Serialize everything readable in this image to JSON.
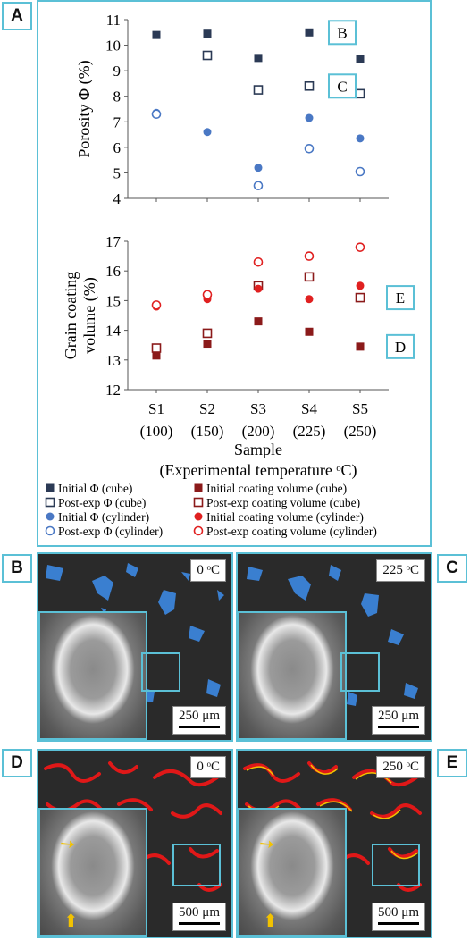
{
  "panel_labels": {
    "a": "A",
    "b": "B",
    "c": "C",
    "d": "D",
    "e": "E"
  },
  "colors": {
    "frame": "#5bc0d6",
    "porosity_cube": "#2b3a55",
    "porosity_cylinder": "#4a78c4",
    "coating_cube": "#8b1a1a",
    "coating_cylinder": "#e02020",
    "pore_blue": "#3a7fd0",
    "coating_red": "#e01818",
    "coating_yellow": "#f2c200"
  },
  "chart_data": [
    {
      "type": "scatter",
      "ylabel": "Porosity Φ (%)",
      "ylim": [
        4,
        11
      ],
      "yticks": [
        "4",
        "5",
        "6",
        "7",
        "8",
        "9",
        "10",
        "11"
      ],
      "categories": [
        "S1",
        "S2",
        "S3",
        "S4",
        "S5"
      ],
      "series": [
        {
          "name": "Initial Φ (cube)",
          "marker": "square-filled",
          "color": "#2b3a55",
          "values": [
            10.4,
            10.45,
            9.5,
            10.5,
            9.45
          ]
        },
        {
          "name": "Post-exp Φ (cube)",
          "marker": "square-open",
          "color": "#2b3a55",
          "values": [
            null,
            9.6,
            8.25,
            8.4,
            8.1
          ]
        },
        {
          "name": "Initial Φ (cylinder)",
          "marker": "circle-filled",
          "color": "#4a78c4",
          "values": [
            7.35,
            6.6,
            5.2,
            7.15,
            6.35
          ]
        },
        {
          "name": "Post-exp Φ (cylinder)",
          "marker": "circle-open",
          "color": "#4a78c4",
          "values": [
            7.3,
            null,
            4.5,
            5.95,
            5.05
          ]
        }
      ],
      "annotations": [
        "B",
        "C"
      ]
    },
    {
      "type": "scatter",
      "ylabel": "Grain coating volume (%)",
      "ylabel_lines": [
        "Grain coating",
        "volume (%)"
      ],
      "ylim": [
        12,
        17
      ],
      "yticks": [
        "12",
        "13",
        "14",
        "15",
        "16",
        "17"
      ],
      "xlabel": "Sample",
      "xlabel2": "(Experimental temperature ᵒC)",
      "categories": [
        "S1",
        "S2",
        "S3",
        "S4",
        "S5"
      ],
      "category_temps": [
        "(100)",
        "(150)",
        "(200)",
        "(225)",
        "(250)"
      ],
      "series": [
        {
          "name": "Initial coating volume (cube)",
          "marker": "square-filled",
          "color": "#8b1a1a",
          "values": [
            13.15,
            13.55,
            14.3,
            13.95,
            13.45
          ]
        },
        {
          "name": "Post-exp coating volume (cube)",
          "marker": "square-open",
          "color": "#8b1a1a",
          "values": [
            13.4,
            13.9,
            15.5,
            15.8,
            15.1
          ]
        },
        {
          "name": "Initial coating volume (cylinder)",
          "marker": "circle-filled",
          "color": "#e02020",
          "values": [
            14.8,
            15.05,
            15.4,
            15.05,
            15.5
          ]
        },
        {
          "name": "Post-exp coating volume (cylinder)",
          "marker": "circle-open",
          "color": "#e02020",
          "values": [
            14.85,
            15.2,
            16.3,
            16.5,
            16.8
          ]
        }
      ],
      "annotations": [
        "E",
        "D"
      ]
    }
  ],
  "legend": [
    {
      "label": "Initial Φ (cube)",
      "marker": "square-filled",
      "color": "#2b3a55"
    },
    {
      "label": "Initial coating volume (cube)",
      "marker": "square-filled",
      "color": "#8b1a1a"
    },
    {
      "label": "Post-exp Φ (cube)",
      "marker": "square-open",
      "color": "#2b3a55"
    },
    {
      "label": "Post-exp coating volume (cube)",
      "marker": "square-open",
      "color": "#8b1a1a"
    },
    {
      "label": "Initial Φ (cylinder)",
      "marker": "circle-filled",
      "color": "#4a78c4"
    },
    {
      "label": "Initial coating volume (cylinder)",
      "marker": "circle-filled",
      "color": "#e02020"
    },
    {
      "label": "Post-exp Φ (cylinder)",
      "marker": "circle-open",
      "color": "#4a78c4"
    },
    {
      "label": "Post-exp coating volume (cylinder)",
      "marker": "circle-open",
      "color": "#e02020"
    }
  ],
  "images": {
    "b": {
      "temp": "0 ᵒC",
      "scale": "250 μm"
    },
    "c": {
      "temp": "225 ᵒC",
      "scale": "250 μm"
    },
    "d": {
      "temp": "0 ᵒC",
      "scale": "500 μm"
    },
    "e": {
      "temp": "250 ᵒC",
      "scale": "500 μm"
    }
  }
}
